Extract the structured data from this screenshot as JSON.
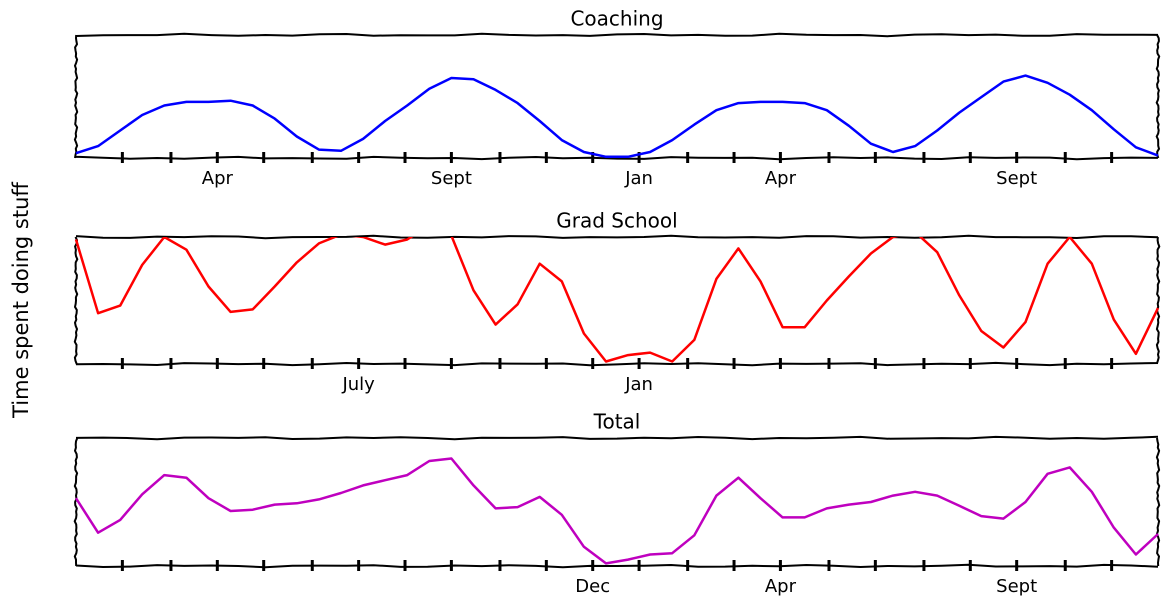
{
  "ylabel": "Time spent doing stuff",
  "chart_data": [
    {
      "type": "line",
      "title": "Coaching",
      "x": [
        0,
        1,
        2,
        3,
        4,
        5,
        6,
        7,
        8,
        9,
        10,
        11,
        12,
        13,
        14,
        15,
        16,
        17,
        18,
        19,
        20,
        21,
        22,
        23,
        24,
        25,
        26,
        27,
        28,
        29,
        30,
        31,
        32,
        33,
        34,
        35,
        36,
        37,
        38,
        39,
        40,
        41,
        42,
        43,
        44,
        45,
        46,
        47,
        48,
        49
      ],
      "series": [
        {
          "color": "#0000ff",
          "values": [
            1,
            7,
            20,
            33,
            41,
            44,
            44,
            45,
            41,
            30,
            15,
            4,
            3,
            13,
            28,
            41,
            55,
            64,
            63,
            54,
            43,
            28,
            12,
            2,
            -2,
            -2,
            2,
            12,
            25,
            37,
            43,
            44,
            44,
            43,
            37,
            24,
            9,
            2,
            7,
            20,
            35,
            48,
            61,
            66,
            60,
            50,
            37,
            21,
            6,
            -1
          ]
        }
      ],
      "xlim": [
        0,
        49
      ],
      "ylim": [
        -3,
        100
      ],
      "xticks": [
        {
          "value": 6.4,
          "label": "Apr"
        },
        {
          "value": 17.0,
          "label": "Sept"
        },
        {
          "value": 25.5,
          "label": "Jan"
        },
        {
          "value": 31.9,
          "label": "Apr"
        },
        {
          "value": 42.6,
          "label": "Sept"
        }
      ],
      "xminorticks": [
        2.1,
        4.3,
        8.5,
        10.7,
        12.8,
        14.9,
        19.2,
        21.3,
        23.4,
        27.7,
        29.8,
        34.1,
        36.2,
        38.4,
        40.5,
        44.8,
        46.9
      ]
    },
    {
      "type": "line",
      "title": "Grad School",
      "x": [
        0,
        1,
        2,
        3,
        4,
        5,
        6,
        7,
        8,
        9,
        10,
        11,
        12,
        13,
        14,
        15,
        16,
        17,
        18,
        19,
        20,
        21,
        22,
        23,
        24,
        25,
        26,
        27,
        28,
        29,
        30,
        31,
        32,
        33,
        34,
        35,
        36,
        37,
        38,
        39,
        40,
        41,
        42,
        43,
        44,
        45,
        46,
        47,
        48,
        49
      ],
      "series": [
        {
          "color": "#ff0000",
          "values": [
            98,
            40,
            46,
            78,
            100,
            90,
            61,
            41,
            43,
            61,
            80,
            95,
            102,
            100,
            94,
            98,
            109,
            101,
            58,
            31,
            47,
            79,
            65,
            24,
            2,
            7,
            9,
            2,
            19,
            67,
            91,
            65,
            29,
            29,
            50,
            69,
            87,
            100,
            104,
            88,
            54,
            26,
            13,
            33,
            79,
            100,
            79,
            35,
            8,
            44
          ]
        }
      ],
      "xlim": [
        0,
        49
      ],
      "ylim": [
        0,
        100
      ],
      "xticks": [
        {
          "value": 12.8,
          "label": "July"
        },
        {
          "value": 25.5,
          "label": "Jan"
        }
      ],
      "xminorticks": [
        2.1,
        4.3,
        6.4,
        8.5,
        10.7,
        14.9,
        17.0,
        19.2,
        21.3,
        23.4,
        27.7,
        29.8,
        31.9,
        34.1,
        36.2,
        38.4,
        40.5,
        42.6,
        44.8,
        46.9
      ]
    },
    {
      "type": "line",
      "title": "Total",
      "x": [
        0,
        1,
        2,
        3,
        4,
        5,
        6,
        7,
        8,
        9,
        10,
        11,
        12,
        13,
        14,
        15,
        16,
        17,
        18,
        19,
        20,
        21,
        22,
        23,
        24,
        25,
        26,
        27,
        28,
        29,
        30,
        31,
        32,
        33,
        34,
        35,
        36,
        37,
        38,
        39,
        40,
        41,
        42,
        43,
        44,
        45,
        46,
        47,
        48,
        49
      ],
      "series": [
        {
          "color": "#bf00bf",
          "values": [
            53,
            26,
            36,
            56,
            71,
            69,
            53,
            43,
            44,
            48,
            49,
            52,
            57,
            63,
            67,
            71,
            82,
            84,
            63,
            45,
            46,
            54,
            40,
            15,
            2,
            5,
            9,
            10,
            24,
            55,
            69,
            53,
            38,
            38,
            45,
            48,
            50,
            55,
            58,
            55,
            47,
            39,
            37,
            50,
            72,
            77,
            58,
            30,
            9,
            25
          ]
        }
      ],
      "xlim": [
        0,
        49
      ],
      "ylim": [
        0,
        100
      ],
      "xticks": [
        {
          "value": 23.4,
          "label": "Dec"
        },
        {
          "value": 31.9,
          "label": "Apr"
        },
        {
          "value": 42.6,
          "label": "Sept"
        }
      ],
      "xminorticks": [
        2.1,
        4.3,
        6.4,
        8.5,
        10.7,
        12.8,
        14.9,
        17.0,
        19.2,
        21.3,
        25.5,
        27.7,
        29.8,
        34.1,
        36.2,
        38.4,
        40.5,
        44.8,
        46.9
      ]
    }
  ]
}
